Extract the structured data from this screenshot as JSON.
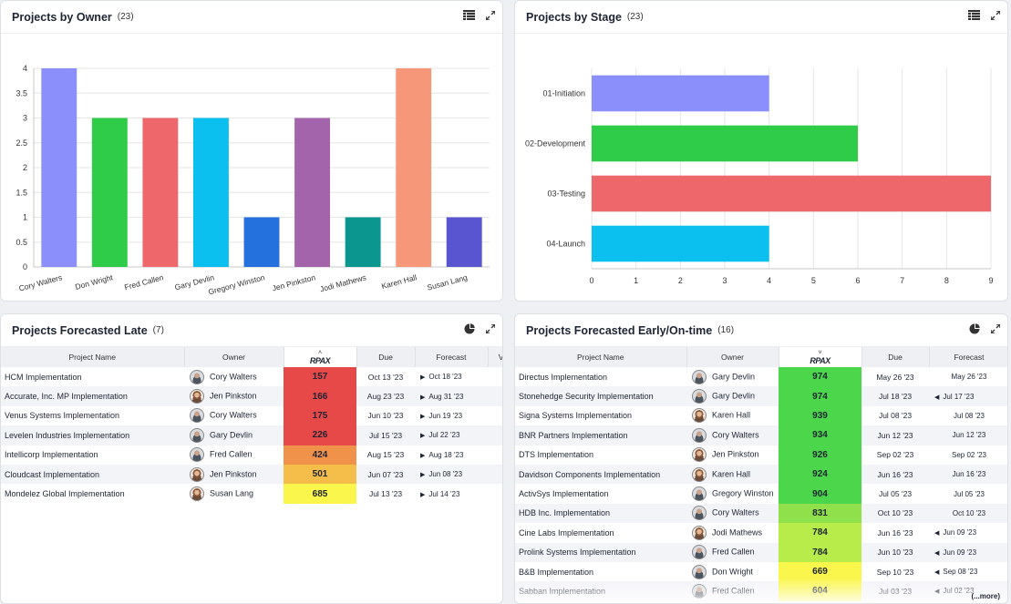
{
  "panels": {
    "owner": {
      "title": "Projects by Owner",
      "count": "(23)"
    },
    "stage": {
      "title": "Projects by Stage",
      "count": "(23)"
    },
    "late": {
      "title": "Projects Forecasted Late",
      "count": "(7)"
    },
    "early": {
      "title": "Projects Forecasted Early/On-time",
      "count": "(16)"
    }
  },
  "icons": {
    "header_table": "table-view-icon",
    "header_pie": "pie-chart-icon",
    "header_expand": "expand-icon"
  },
  "chart_data": [
    {
      "type": "bar",
      "title": "",
      "categories": [
        "Cory Walters",
        "Don Wright",
        "Fred Callen",
        "Gary Devlin",
        "Gregory Winston",
        "Jen Pinkston",
        "Jodi Mathews",
        "Karen Hall",
        "Susan Lang"
      ],
      "values": [
        4,
        3,
        3,
        3,
        1,
        3,
        1,
        4,
        1
      ],
      "colors": [
        "#8b8ffc",
        "#2ecc48",
        "#ee676b",
        "#0bbfef",
        "#2471de",
        "#a464ab",
        "#0c9690",
        "#f7977a",
        "#5954cf"
      ],
      "y_ticks": [
        "0",
        "0.5",
        "1",
        "1.5",
        "2",
        "2.5",
        "3",
        "3.5",
        "4"
      ],
      "ylim": [
        0,
        4
      ],
      "grid": true
    },
    {
      "type": "bar",
      "orientation": "horizontal",
      "title": "",
      "categories": [
        "01-Initiation",
        "02-Development",
        "03-Testing",
        "04-Launch"
      ],
      "values": [
        4,
        6,
        9,
        4
      ],
      "colors": [
        "#8b8ffc",
        "#2ecc48",
        "#ee676b",
        "#0bbfef"
      ],
      "x_ticks": [
        "0",
        "1",
        "2",
        "3",
        "4",
        "5",
        "6",
        "7",
        "8",
        "9"
      ],
      "xlim": [
        0,
        9
      ],
      "grid": true
    }
  ],
  "late_table": {
    "columns": [
      "Project Name",
      "Owner",
      "RPAX",
      "Due",
      "Forecast",
      "Vari"
    ],
    "rows": [
      {
        "name": "HCM Implementation",
        "owner": "Cory Walters",
        "gender": "m",
        "score": "157",
        "color": "#e74848",
        "due": "Oct 13 '23",
        "forecast": "Oct 18 '23",
        "trend": "late"
      },
      {
        "name": "Accurate, Inc. MP Implementation",
        "owner": "Jen Pinkston",
        "gender": "f",
        "score": "166",
        "color": "#e74848",
        "due": "Aug 23 '23",
        "forecast": "Aug 31 '23",
        "trend": "late"
      },
      {
        "name": "Venus Systems Implementation",
        "owner": "Cory Walters",
        "gender": "m",
        "score": "175",
        "color": "#e74848",
        "due": "Jun 10 '23",
        "forecast": "Jun 19 '23",
        "trend": "late"
      },
      {
        "name": "Levelen Industries Implementation",
        "owner": "Gary Devlin",
        "gender": "m",
        "score": "226",
        "color": "#e74848",
        "due": "Jul 15 '23",
        "forecast": "Jul 22 '23",
        "trend": "late"
      },
      {
        "name": "Intellicorp Implementation",
        "owner": "Fred Callen",
        "gender": "m",
        "score": "424",
        "color": "#f0924a",
        "due": "Aug 15 '23",
        "forecast": "Aug 18 '23",
        "trend": "late"
      },
      {
        "name": "Cloudcast Implementation",
        "owner": "Jen Pinkston",
        "gender": "f",
        "score": "501",
        "color": "#f5bd4a",
        "due": "Jun 07 '23",
        "forecast": "Jun 08 '23",
        "trend": "late"
      },
      {
        "name": "Mondelez Global Implementation",
        "owner": "Susan Lang",
        "gender": "f",
        "score": "685",
        "color": "#faf64c",
        "due": "Jul 13 '23",
        "forecast": "Jul 14 '23",
        "trend": "late"
      }
    ]
  },
  "early_table": {
    "columns": [
      "Project Name",
      "Owner",
      "RPAX",
      "Due",
      "Forecast"
    ],
    "more": "(...more)",
    "rows": [
      {
        "name": "Directus Implementation",
        "owner": "Gary Devlin",
        "gender": "m",
        "score": "974",
        "color": "#4cd64c",
        "due": "May 26 '23",
        "forecast": "May 26 '23",
        "trend": "same"
      },
      {
        "name": "Stonehedge Security Implementation",
        "owner": "Gary Devlin",
        "gender": "m",
        "score": "974",
        "color": "#4cd64c",
        "due": "Jul 18 '23",
        "forecast": "Jul 17 '23",
        "trend": "early"
      },
      {
        "name": "Signa Systems Implementation",
        "owner": "Karen Hall",
        "gender": "f",
        "score": "939",
        "color": "#4cd64c",
        "due": "Jul 08 '23",
        "forecast": "Jul 08 '23",
        "trend": "same"
      },
      {
        "name": "BNR Partners Implementation",
        "owner": "Cory Walters",
        "gender": "m",
        "score": "934",
        "color": "#4cd64c",
        "due": "Jun 12 '23",
        "forecast": "Jun 12 '23",
        "trend": "same"
      },
      {
        "name": "DTS Implementation",
        "owner": "Jen Pinkston",
        "gender": "f",
        "score": "926",
        "color": "#4cd64c",
        "due": "Sep 02 '23",
        "forecast": "Sep 02 '23",
        "trend": "same"
      },
      {
        "name": "Davidson Components Implementation",
        "owner": "Karen Hall",
        "gender": "f",
        "score": "924",
        "color": "#4cd64c",
        "due": "Jun 16 '23",
        "forecast": "Jun 16 '23",
        "trend": "same"
      },
      {
        "name": "ActivSys Implementation",
        "owner": "Gregory Winston",
        "gender": "m",
        "score": "904",
        "color": "#4cd64c",
        "due": "Jul 05 '23",
        "forecast": "Jul 05 '23",
        "trend": "same"
      },
      {
        "name": "HDB Inc. Implementation",
        "owner": "Cory Walters",
        "gender": "m",
        "score": "831",
        "color": "#8fe04a",
        "due": "Oct 10 '23",
        "forecast": "Oct 10 '23",
        "trend": "same"
      },
      {
        "name": "Cine Labs Implementation",
        "owner": "Jodi Mathews",
        "gender": "f",
        "score": "784",
        "color": "#b8ec4a",
        "due": "Jun 16 '23",
        "forecast": "Jun 09 '23",
        "trend": "early"
      },
      {
        "name": "Prolink Systems Implementation",
        "owner": "Fred Callen",
        "gender": "m",
        "score": "784",
        "color": "#b8ec4a",
        "due": "Jun 10 '23",
        "forecast": "Jun 09 '23",
        "trend": "early"
      },
      {
        "name": "B&B Implementation",
        "owner": "Don Wright",
        "gender": "m",
        "score": "669",
        "color": "#faf64c",
        "due": "Sep 10 '23",
        "forecast": "Sep 08 '23",
        "trend": "early"
      },
      {
        "name": "Sabban Implementation",
        "owner": "Fred Callen",
        "gender": "m",
        "score": "604",
        "color": "#faf64c",
        "due": "Jul 03 '23",
        "forecast": "Jul 02 '23",
        "trend": "early"
      }
    ]
  }
}
